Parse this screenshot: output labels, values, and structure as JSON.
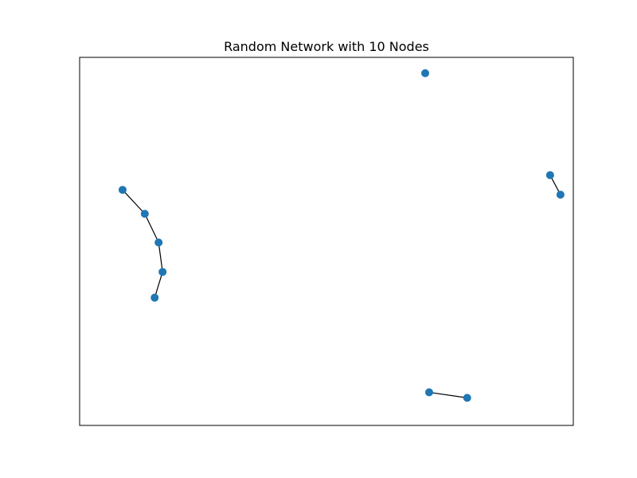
{
  "chart_data": {
    "type": "network",
    "title": "Random Network with 10 Nodes",
    "axes_visible": false,
    "frame": true,
    "colors": {
      "node": "#1f77b4",
      "edge": "#000000"
    },
    "nodes": [
      {
        "id": "n1",
        "x": 0.087,
        "y": 0.64
      },
      {
        "id": "n2",
        "x": 0.132,
        "y": 0.575
      },
      {
        "id": "n3",
        "x": 0.16,
        "y": 0.497
      },
      {
        "id": "n4",
        "x": 0.168,
        "y": 0.417
      },
      {
        "id": "n5",
        "x": 0.152,
        "y": 0.347
      },
      {
        "id": "n6",
        "x": 0.7,
        "y": 0.957
      },
      {
        "id": "n7",
        "x": 0.953,
        "y": 0.68
      },
      {
        "id": "n8",
        "x": 0.974,
        "y": 0.627
      },
      {
        "id": "n9",
        "x": 0.708,
        "y": 0.09
      },
      {
        "id": "n10",
        "x": 0.785,
        "y": 0.075
      }
    ],
    "edges": [
      [
        "n1",
        "n2"
      ],
      [
        "n2",
        "n3"
      ],
      [
        "n3",
        "n4"
      ],
      [
        "n4",
        "n5"
      ],
      [
        "n7",
        "n8"
      ],
      [
        "n9",
        "n10"
      ]
    ]
  }
}
